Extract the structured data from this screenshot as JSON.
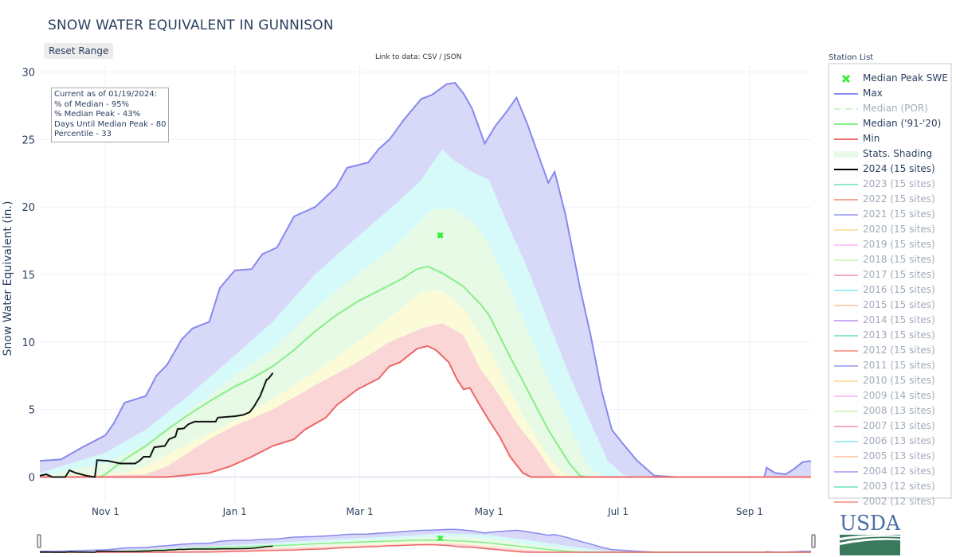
{
  "header": {
    "title": "SNOW WATER EQUIVALENT IN GUNNISON",
    "reset_label": "Reset Range",
    "data_link_prefix": "Link to data:",
    "csv_label": "CSV",
    "separator": "/",
    "json_label": "JSON"
  },
  "info_box": {
    "line1": "Current as of 01/19/2024:",
    "line2": "% of Median - 95%",
    "line3": "% Median Peak - 43%",
    "line4": "Days Until Median Peak - 80",
    "line5": "Percentile - 33"
  },
  "legend": {
    "title": "Station List",
    "items": [
      {
        "label": "Median Peak SWE",
        "type": "marker",
        "color": "#33ee33",
        "active": true
      },
      {
        "label": "Max",
        "type": "line",
        "color": "#8b8bf0",
        "active": true
      },
      {
        "label": "Median (POR)",
        "type": "dash",
        "color": "#ccf5cc",
        "active": false
      },
      {
        "label": "Median ('91-'20)",
        "type": "line",
        "color": "#88ee88",
        "active": true
      },
      {
        "label": "Min",
        "type": "line",
        "color": "#f07070",
        "active": true
      },
      {
        "label": "Stats. Shading",
        "type": "fill",
        "color": "#e6fae6",
        "active": true
      },
      {
        "label": "2024 (15 sites)",
        "type": "line",
        "color": "#000000",
        "active": true
      },
      {
        "label": "2023 (15 sites)",
        "type": "line",
        "color": "#8ee8cc",
        "active": false
      },
      {
        "label": "2022 (15 sites)",
        "type": "line",
        "color": "#f5a898",
        "active": false
      },
      {
        "label": "2021 (15 sites)",
        "type": "line",
        "color": "#b0b0f5",
        "active": false
      },
      {
        "label": "2020 (15 sites)",
        "type": "line",
        "color": "#fce3a8",
        "active": false
      },
      {
        "label": "2019 (15 sites)",
        "type": "line",
        "color": "#fcc4f5",
        "active": false
      },
      {
        "label": "2018 (15 sites)",
        "type": "line",
        "color": "#d8f2c4",
        "active": false
      },
      {
        "label": "2017 (15 sites)",
        "type": "line",
        "color": "#f7aabb",
        "active": false
      },
      {
        "label": "2016 (15 sites)",
        "type": "line",
        "color": "#9ceef5",
        "active": false
      },
      {
        "label": "2015 (15 sites)",
        "type": "line",
        "color": "#fcd0b0",
        "active": false
      },
      {
        "label": "2014 (15 sites)",
        "type": "line",
        "color": "#c8aaf5",
        "active": false
      },
      {
        "label": "2013 (15 sites)",
        "type": "line",
        "color": "#8ee8cc",
        "active": false
      },
      {
        "label": "2012 (15 sites)",
        "type": "line",
        "color": "#f5a898",
        "active": false
      },
      {
        "label": "2011 (15 sites)",
        "type": "line",
        "color": "#b0b0f5",
        "active": false
      },
      {
        "label": "2010 (15 sites)",
        "type": "line",
        "color": "#fce3a8",
        "active": false
      },
      {
        "label": "2009 (14 sites)",
        "type": "line",
        "color": "#fcc4f5",
        "active": false
      },
      {
        "label": "2008 (13 sites)",
        "type": "line",
        "color": "#d8f2c4",
        "active": false
      },
      {
        "label": "2007 (13 sites)",
        "type": "line",
        "color": "#f7aabb",
        "active": false
      },
      {
        "label": "2006 (13 sites)",
        "type": "line",
        "color": "#9ceef5",
        "active": false
      },
      {
        "label": "2005 (13 sites)",
        "type": "line",
        "color": "#fcd0b0",
        "active": false
      },
      {
        "label": "2004 (12 sites)",
        "type": "line",
        "color": "#c8aaf5",
        "active": false
      },
      {
        "label": "2003 (12 sites)",
        "type": "line",
        "color": "#8ee8cc",
        "active": false
      },
      {
        "label": "2002 (12 sites)",
        "type": "line",
        "color": "#f5a898",
        "active": false
      }
    ]
  },
  "logo": {
    "text": "USDA",
    "color": "#4a6fa5",
    "field_color": "#3a7a5c"
  },
  "chart_data": {
    "type": "area",
    "title": "SNOW WATER EQUIVALENT IN GUNNISON",
    "xlabel": "",
    "ylabel": "Snow Water Equivalent (in.)",
    "x_unit": "days since Oct 1",
    "xlim": [
      0,
      364
    ],
    "ylim": [
      -1.8,
      30.5
    ],
    "yticks": [
      0,
      5,
      10,
      15,
      20,
      25,
      30
    ],
    "xticks": [
      {
        "day": 31,
        "label": "Nov  1"
      },
      {
        "day": 92,
        "label": "Jan  1"
      },
      {
        "day": 151,
        "label": "Mar  1"
      },
      {
        "day": 212,
        "label": "May  1"
      },
      {
        "day": 273,
        "label": "Jul  1"
      },
      {
        "day": 335,
        "label": "Sep  1"
      }
    ],
    "grid": true,
    "legend_position": "right",
    "colors": {
      "max_fill": "#d8d8f8",
      "p90_fill": "#d6fafa",
      "p70_fill": "#e6fae6",
      "p30_fill": "#fbfbd8",
      "p10_fill": "#fad6d6",
      "max_line": "#8888ee",
      "median_line": "#88ee88",
      "min_line": "#ee6666",
      "current_line": "#111111",
      "marker": "#33ee33"
    },
    "series": {
      "max": [
        [
          0,
          1.2
        ],
        [
          10,
          1.3
        ],
        [
          20,
          2.2
        ],
        [
          25,
          2.6
        ],
        [
          31,
          3.1
        ],
        [
          35,
          4.0
        ],
        [
          40,
          5.5
        ],
        [
          50,
          6.0
        ],
        [
          55,
          7.5
        ],
        [
          60,
          8.3
        ],
        [
          67,
          10.2
        ],
        [
          72,
          11.0
        ],
        [
          80,
          11.5
        ],
        [
          85,
          14.0
        ],
        [
          92,
          15.3
        ],
        [
          100,
          15.4
        ],
        [
          105,
          16.5
        ],
        [
          112,
          17.0
        ],
        [
          120,
          19.3
        ],
        [
          130,
          20.0
        ],
        [
          140,
          21.5
        ],
        [
          145,
          22.9
        ],
        [
          155,
          23.3
        ],
        [
          160,
          24.3
        ],
        [
          165,
          25.0
        ],
        [
          172,
          26.5
        ],
        [
          180,
          28.0
        ],
        [
          185,
          28.3
        ],
        [
          192,
          29.1
        ],
        [
          196,
          29.2
        ],
        [
          200,
          28.4
        ],
        [
          204,
          27.3
        ],
        [
          210,
          24.7
        ],
        [
          215,
          26.0
        ],
        [
          220,
          27.0
        ],
        [
          225,
          28.1
        ],
        [
          230,
          26.2
        ],
        [
          235,
          24.0
        ],
        [
          240,
          21.8
        ],
        [
          243,
          22.6
        ],
        [
          248,
          19.5
        ],
        [
          255,
          14.0
        ],
        [
          260,
          10.5
        ],
        [
          265,
          6.5
        ],
        [
          270,
          3.5
        ],
        [
          275,
          2.5
        ],
        [
          282,
          1.2
        ],
        [
          290,
          0.1
        ],
        [
          300,
          0
        ],
        [
          342,
          0
        ],
        [
          343,
          0.7
        ],
        [
          347,
          0.3
        ],
        [
          352,
          0.2
        ],
        [
          356,
          0.6
        ],
        [
          360,
          1.1
        ],
        [
          364,
          1.2
        ]
      ],
      "p90": [
        [
          0,
          0.3
        ],
        [
          31,
          1.8
        ],
        [
          50,
          3.5
        ],
        [
          70,
          6.0
        ],
        [
          92,
          9.0
        ],
        [
          110,
          11.5
        ],
        [
          130,
          15.0
        ],
        [
          150,
          17.8
        ],
        [
          170,
          20.5
        ],
        [
          180,
          22.0
        ],
        [
          190,
          24.3
        ],
        [
          195,
          23.5
        ],
        [
          205,
          22.5
        ],
        [
          212,
          22.0
        ],
        [
          220,
          19.0
        ],
        [
          230,
          15.5
        ],
        [
          240,
          11.5
        ],
        [
          250,
          7.5
        ],
        [
          260,
          4.0
        ],
        [
          268,
          1.2
        ],
        [
          275,
          0.2
        ],
        [
          280,
          0
        ],
        [
          364,
          0
        ]
      ],
      "p70": [
        [
          0,
          0.1
        ],
        [
          31,
          1.0
        ],
        [
          50,
          2.4
        ],
        [
          70,
          4.8
        ],
        [
          92,
          7.5
        ],
        [
          110,
          9.5
        ],
        [
          130,
          12.5
        ],
        [
          150,
          15.0
        ],
        [
          165,
          16.8
        ],
        [
          175,
          18.2
        ],
        [
          185,
          19.8
        ],
        [
          195,
          19.9
        ],
        [
          205,
          18.8
        ],
        [
          212,
          17.3
        ],
        [
          220,
          14.5
        ],
        [
          230,
          11.0
        ],
        [
          240,
          7.2
        ],
        [
          250,
          3.8
        ],
        [
          258,
          1.0
        ],
        [
          265,
          0
        ],
        [
          364,
          0
        ]
      ],
      "median": [
        [
          0,
          0
        ],
        [
          28,
          0
        ],
        [
          31,
          0.2
        ],
        [
          40,
          1.3
        ],
        [
          50,
          2.3
        ],
        [
          60,
          3.5
        ],
        [
          70,
          4.6
        ],
        [
          80,
          5.6
        ],
        [
          92,
          6.7
        ],
        [
          100,
          7.3
        ],
        [
          110,
          8.2
        ],
        [
          120,
          9.4
        ],
        [
          130,
          10.8
        ],
        [
          140,
          12.0
        ],
        [
          150,
          13.0
        ],
        [
          160,
          13.8
        ],
        [
          170,
          14.6
        ],
        [
          178,
          15.4
        ],
        [
          183,
          15.6
        ],
        [
          190,
          15.1
        ],
        [
          200,
          14.1
        ],
        [
          208,
          12.8
        ],
        [
          212,
          12.0
        ],
        [
          220,
          9.5
        ],
        [
          230,
          6.5
        ],
        [
          240,
          3.5
        ],
        [
          250,
          1.0
        ],
        [
          255,
          0.1
        ],
        [
          258,
          0
        ],
        [
          364,
          0
        ]
      ],
      "p30": [
        [
          0,
          0
        ],
        [
          40,
          0.3
        ],
        [
          50,
          0.8
        ],
        [
          70,
          2.5
        ],
        [
          92,
          4.2
        ],
        [
          110,
          5.8
        ],
        [
          130,
          7.8
        ],
        [
          150,
          10.0
        ],
        [
          165,
          11.8
        ],
        [
          180,
          13.7
        ],
        [
          190,
          13.8
        ],
        [
          200,
          12.5
        ],
        [
          212,
          9.5
        ],
        [
          220,
          7.0
        ],
        [
          230,
          4.0
        ],
        [
          240,
          1.5
        ],
        [
          248,
          0.2
        ],
        [
          252,
          0
        ],
        [
          364,
          0
        ]
      ],
      "p10": [
        [
          0,
          0
        ],
        [
          50,
          0.2
        ],
        [
          60,
          0.8
        ],
        [
          70,
          1.8
        ],
        [
          80,
          2.8
        ],
        [
          92,
          3.8
        ],
        [
          110,
          5.0
        ],
        [
          130,
          6.8
        ],
        [
          150,
          8.5
        ],
        [
          165,
          10.0
        ],
        [
          180,
          11.0
        ],
        [
          190,
          11.4
        ],
        [
          200,
          10.5
        ],
        [
          208,
          8.0
        ],
        [
          215,
          6.5
        ],
        [
          225,
          4.0
        ],
        [
          235,
          2.0
        ],
        [
          242,
          0.3
        ],
        [
          245,
          0
        ],
        [
          364,
          0
        ]
      ],
      "min": [
        [
          0,
          0
        ],
        [
          60,
          0
        ],
        [
          80,
          0.3
        ],
        [
          90,
          0.8
        ],
        [
          100,
          1.5
        ],
        [
          110,
          2.3
        ],
        [
          120,
          2.8
        ],
        [
          125,
          3.5
        ],
        [
          135,
          4.4
        ],
        [
          140,
          5.3
        ],
        [
          150,
          6.5
        ],
        [
          160,
          7.3
        ],
        [
          165,
          8.2
        ],
        [
          170,
          8.5
        ],
        [
          178,
          9.5
        ],
        [
          183,
          9.7
        ],
        [
          187,
          9.4
        ],
        [
          193,
          8.5
        ],
        [
          197,
          7.2
        ],
        [
          200,
          6.5
        ],
        [
          203,
          6.6
        ],
        [
          207,
          5.5
        ],
        [
          212,
          4.2
        ],
        [
          217,
          3.0
        ],
        [
          222,
          1.5
        ],
        [
          228,
          0.3
        ],
        [
          232,
          0
        ],
        [
          364,
          0
        ]
      ],
      "current_2024": [
        [
          0,
          0.1
        ],
        [
          3,
          0.2
        ],
        [
          6,
          0
        ],
        [
          12,
          0
        ],
        [
          14,
          0.5
        ],
        [
          17,
          0.3
        ],
        [
          22,
          0.1
        ],
        [
          26,
          0
        ],
        [
          27,
          1.25
        ],
        [
          32,
          1.2
        ],
        [
          38,
          1.0
        ],
        [
          45,
          1.0
        ],
        [
          47,
          1.2
        ],
        [
          49,
          1.5
        ],
        [
          52,
          1.5
        ],
        [
          54,
          2.2
        ],
        [
          59,
          2.3
        ],
        [
          61,
          2.8
        ],
        [
          64,
          3.0
        ],
        [
          65,
          3.55
        ],
        [
          68,
          3.6
        ],
        [
          70,
          3.9
        ],
        [
          73,
          4.1
        ],
        [
          83,
          4.1
        ],
        [
          84,
          4.4
        ],
        [
          92,
          4.5
        ],
        [
          96,
          4.6
        ],
        [
          99,
          4.8
        ],
        [
          101,
          5.2
        ],
        [
          104,
          6.0
        ],
        [
          106,
          6.8
        ],
        [
          107,
          7.2
        ],
        [
          108,
          7.3
        ],
        [
          110,
          7.7
        ]
      ]
    },
    "median_peak": {
      "day": 189,
      "value": 17.9,
      "label": "Median Peak SWE"
    }
  }
}
